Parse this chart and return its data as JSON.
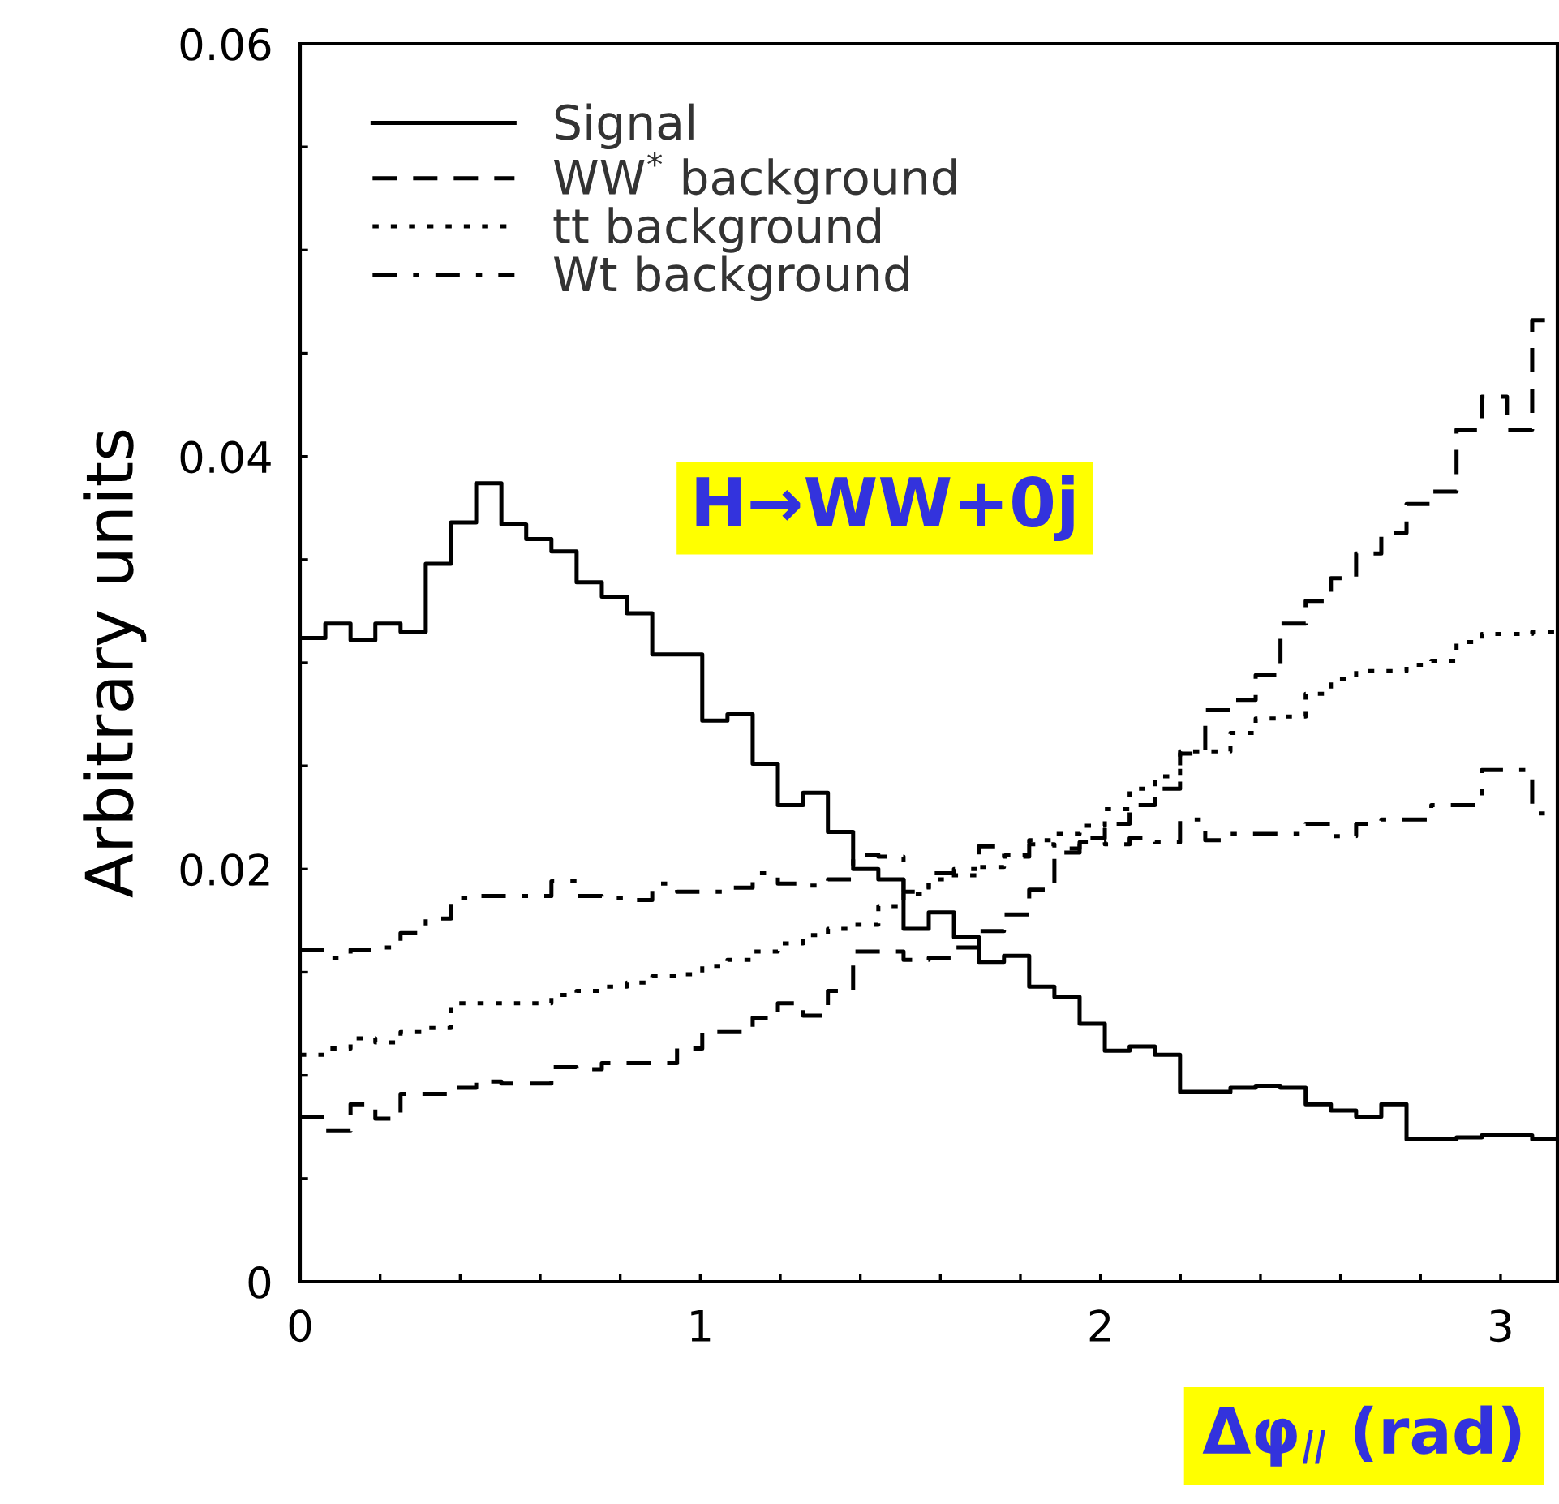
{
  "chart_data": {
    "type": "histogram",
    "xlabel": "Δφ$_{ll}$ (rad)",
    "ylabel": "Arbitrary units",
    "annotations": [
      "H→WW+0j"
    ],
    "bins": [
      0,
      0.063,
      0.126,
      0.188,
      0.251,
      0.314,
      0.377,
      0.44,
      0.503,
      0.565,
      0.628,
      0.691,
      0.754,
      0.817,
      0.88,
      0.942,
      1.005,
      1.068,
      1.131,
      1.194,
      1.257,
      1.319,
      1.382,
      1.445,
      1.508,
      1.571,
      1.634,
      1.696,
      1.759,
      1.822,
      1.885,
      1.948,
      2.011,
      2.073,
      2.136,
      2.199,
      2.262,
      2.325,
      2.388,
      2.45,
      2.513,
      2.576,
      2.639,
      2.702,
      2.765,
      2.827,
      2.89,
      2.953,
      3.016,
      3.079,
      3.142
    ],
    "series": [
      {
        "name": "Signal",
        "color": "#000000",
        "line_style": "solid",
        "values": [
          0.0312,
          0.0319,
          0.0311,
          0.0319,
          0.0315,
          0.0348,
          0.0368,
          0.0387,
          0.0367,
          0.036,
          0.0354,
          0.0339,
          0.0332,
          0.0324,
          0.0304,
          0.0304,
          0.0272,
          0.0275,
          0.0251,
          0.0231,
          0.0237,
          0.0218,
          0.02,
          0.0195,
          0.0171,
          0.0179,
          0.0167,
          0.0155,
          0.0158,
          0.0143,
          0.0138,
          0.0125,
          0.0112,
          0.0114,
          0.011,
          0.0092,
          0.0092,
          0.0094,
          0.0095,
          0.0094,
          0.0086,
          0.0083,
          0.008,
          0.0086,
          0.0069,
          0.0069,
          0.007,
          0.0071,
          0.0071,
          0.0069
        ]
      },
      {
        "name": "WW$^{*}$ background",
        "color": "#000000",
        "line_style": "dashed",
        "values": [
          0.008,
          0.0073,
          0.0086,
          0.0079,
          0.0091,
          0.0091,
          0.0094,
          0.0097,
          0.0096,
          0.0096,
          0.0104,
          0.0103,
          0.0106,
          0.0106,
          0.0106,
          0.0113,
          0.0121,
          0.0121,
          0.0128,
          0.0135,
          0.0129,
          0.0141,
          0.016,
          0.016,
          0.0156,
          0.0157,
          0.0162,
          0.017,
          0.0178,
          0.019,
          0.0208,
          0.0215,
          0.0222,
          0.0231,
          0.0239,
          0.0256,
          0.0277,
          0.0282,
          0.0294,
          0.0319,
          0.033,
          0.0341,
          0.0353,
          0.0363,
          0.0377,
          0.0383,
          0.0413,
          0.0429,
          0.0413,
          0.0466
        ]
      },
      {
        "name": "tt background",
        "color": "#000000",
        "line_style": "dotted",
        "values": [
          0.011,
          0.0113,
          0.0118,
          0.0116,
          0.0121,
          0.0123,
          0.0135,
          0.0135,
          0.0135,
          0.0135,
          0.0139,
          0.0141,
          0.0143,
          0.0145,
          0.0148,
          0.0149,
          0.0153,
          0.0156,
          0.016,
          0.0164,
          0.0168,
          0.0171,
          0.0173,
          0.0182,
          0.0188,
          0.0195,
          0.0197,
          0.0201,
          0.0207,
          0.0214,
          0.0217,
          0.0221,
          0.0229,
          0.0239,
          0.0245,
          0.0257,
          0.0257,
          0.0266,
          0.0273,
          0.0274,
          0.0285,
          0.0292,
          0.0296,
          0.0296,
          0.0299,
          0.0301,
          0.031,
          0.0314,
          0.0314,
          0.0315
        ]
      },
      {
        "name": "Wt background",
        "color": "#000000",
        "line_style": "dashdot",
        "values": [
          0.0161,
          0.0157,
          0.0161,
          0.0162,
          0.0169,
          0.0176,
          0.0186,
          0.0187,
          0.0187,
          0.0187,
          0.0194,
          0.0187,
          0.0186,
          0.0185,
          0.0193,
          0.0189,
          0.0189,
          0.0191,
          0.0198,
          0.0193,
          0.0192,
          0.0195,
          0.0207,
          0.0206,
          0.0189,
          0.0198,
          0.02,
          0.0211,
          0.0206,
          0.0212,
          0.021,
          0.0213,
          0.0212,
          0.0215,
          0.0213,
          0.0224,
          0.0214,
          0.0217,
          0.0217,
          0.0217,
          0.0222,
          0.0216,
          0.0222,
          0.0224,
          0.0224,
          0.0231,
          0.0231,
          0.0248,
          0.0248,
          0.0227
        ]
      }
    ],
    "xlim": [
      0,
      3.142
    ],
    "xticks": [
      0,
      {
        "value": 0.2,
        "label": null
      },
      {
        "value": 0.4,
        "label": null
      },
      {
        "value": 0.6,
        "label": null
      },
      {
        "value": 0.8,
        "label": null
      },
      1,
      {
        "value": 1.2,
        "label": null
      },
      {
        "value": 1.4,
        "label": null
      },
      {
        "value": 1.6,
        "label": null
      },
      {
        "value": 1.8,
        "label": null
      },
      2,
      {
        "value": 2.2,
        "label": null
      },
      {
        "value": 2.4,
        "label": null
      },
      {
        "value": 2.6,
        "label": null
      },
      {
        "value": 2.8,
        "label": null
      },
      3
    ],
    "ylim": [
      0,
      0.06
    ],
    "yticks": [
      0,
      {
        "value": 0.005,
        "label": null
      },
      {
        "value": 0.01,
        "label": null
      },
      {
        "value": 0.015,
        "label": null
      },
      0.02,
      {
        "value": 0.025,
        "label": null
      },
      {
        "value": 0.03,
        "label": null
      },
      {
        "value": 0.035,
        "label": null
      },
      0.04,
      {
        "value": 0.045,
        "label": null
      },
      {
        "value": 0.05,
        "label": null
      },
      {
        "value": 0.055,
        "label": null
      },
      0.06
    ],
    "grid": false,
    "legend": "top left"
  }
}
